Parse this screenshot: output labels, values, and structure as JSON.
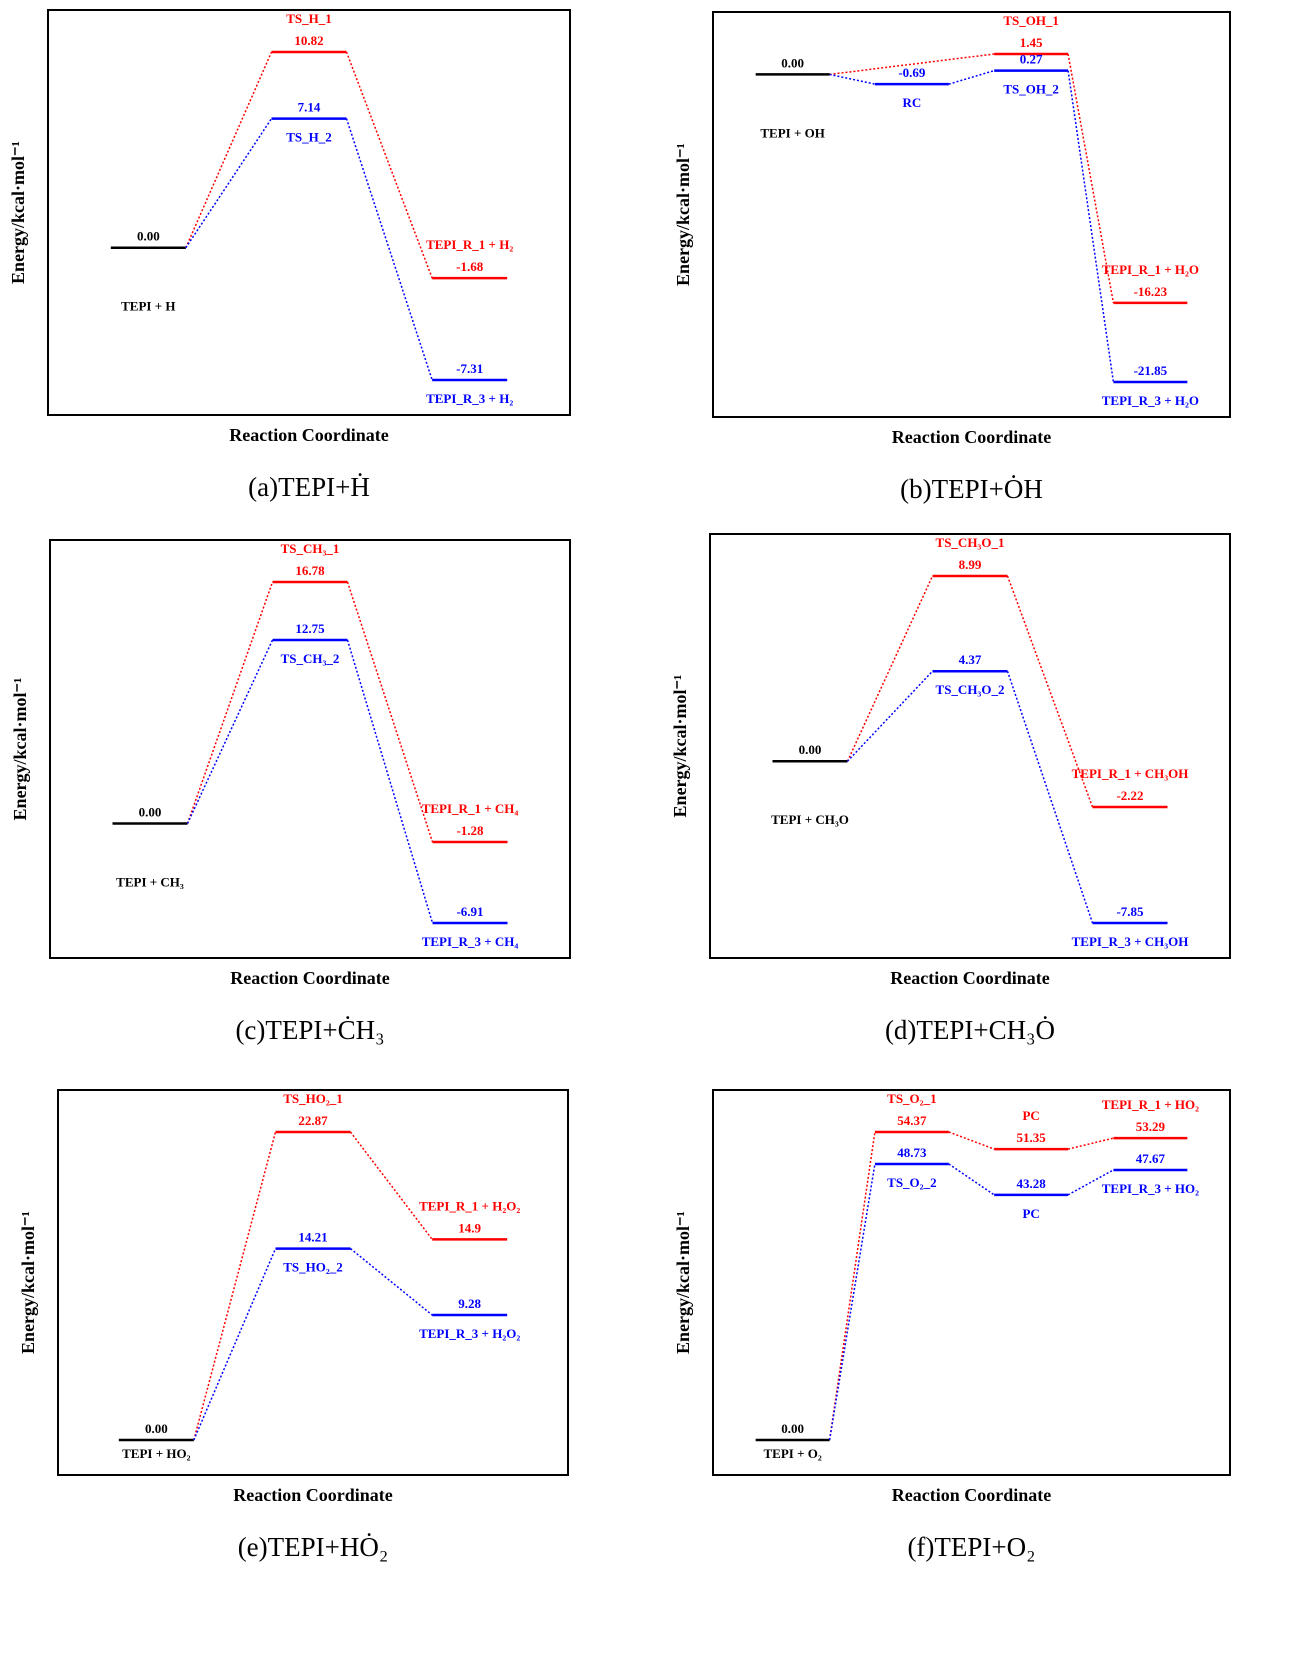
{
  "chart_data": [
    {
      "type": "energy-profile",
      "caption": "(a)TEPI+Ḣ",
      "xlabel": "Reaction Coordinate",
      "ylabel": "Energy/kcal·mol⁻¹",
      "reactant": {
        "value": 0,
        "value_label": "0.00",
        "label": "TEPI + H"
      },
      "series": [
        {
          "color": "#ff0000",
          "values": [
            10.82,
            -1.68
          ],
          "point_labels": [
            "TS_H_1",
            "TEPI_R_1 + H₂"
          ]
        },
        {
          "color": "#0000ff",
          "values": [
            7.14,
            -7.31
          ],
          "point_labels": [
            "TS_H_2",
            "TEPI_R_3 + H₂"
          ]
        }
      ]
    },
    {
      "type": "energy-profile",
      "caption": "(b)TEPI+ȮH",
      "xlabel": "Reaction Coordinate",
      "ylabel": "Energy/kcal·mol⁻¹",
      "reactant": {
        "value": 0,
        "value_label": "0.00",
        "label": "TEPI + OH"
      },
      "series": [
        {
          "color": "#ff0000",
          "values": [
            null,
            1.45,
            -16.23
          ],
          "point_labels": [
            null,
            "TS_OH_1",
            "TEPI_R_1 + H₂O"
          ]
        },
        {
          "color": "#0000ff",
          "values": [
            -0.69,
            0.27,
            -21.85
          ],
          "point_labels": [
            "RC",
            "TS_OH_2",
            "TEPI_R_3 + H₂O"
          ]
        }
      ]
    },
    {
      "type": "energy-profile",
      "caption": "(c)TEPI+ĊH₃",
      "xlabel": "Reaction Coordinate",
      "ylabel": "Energy/kcal·mol⁻¹",
      "reactant": {
        "value": 0,
        "value_label": "0.00",
        "label": "TEPI + CH₃"
      },
      "series": [
        {
          "color": "#ff0000",
          "values": [
            16.78,
            -1.28
          ],
          "point_labels": [
            "TS_CH₃_1",
            "TEPI_R_1 + CH₄"
          ]
        },
        {
          "color": "#0000ff",
          "values": [
            12.75,
            -6.91
          ],
          "point_labels": [
            "TS_CH₃_2",
            "TEPI_R_3 + CH₄"
          ]
        }
      ]
    },
    {
      "type": "energy-profile",
      "caption": "(d)TEPI+CH₃Ȯ",
      "xlabel": "Reaction Coordinate",
      "ylabel": "Energy/kcal·mol⁻¹",
      "reactant": {
        "value": 0,
        "value_label": "0.00",
        "label": "TEPI + CH₃O"
      },
      "series": [
        {
          "color": "#ff0000",
          "values": [
            8.99,
            -2.22
          ],
          "point_labels": [
            "TS_CH₃O_1",
            "TEPI_R_1 + CH₃OH"
          ]
        },
        {
          "color": "#0000ff",
          "values": [
            4.37,
            -7.85
          ],
          "point_labels": [
            "TS_CH₃O_2",
            "TEPI_R_3 + CH₃OH"
          ]
        }
      ]
    },
    {
      "type": "energy-profile",
      "caption": "(e)TEPI+HȮ₂",
      "xlabel": "Reaction Coordinate",
      "ylabel": "Energy/kcal·mol⁻¹",
      "reactant": {
        "value": 0,
        "value_label": "0.00",
        "label": "TEPI + HO₂"
      },
      "series": [
        {
          "color": "#ff0000",
          "values": [
            22.87,
            14.9
          ],
          "point_labels": [
            "TS_HO₂_1",
            "TEPI_R_1 + H₂O₂"
          ]
        },
        {
          "color": "#0000ff",
          "values": [
            14.21,
            9.28
          ],
          "point_labels": [
            "TS_HO₂_2",
            "TEPI_R_3 + H₂O₂"
          ]
        }
      ]
    },
    {
      "type": "energy-profile",
      "caption": "(f)TEPI+O₂",
      "xlabel": "Reaction Coordinate",
      "ylabel": "Energy/kcal·mol⁻¹",
      "reactant": {
        "value": 0,
        "value_label": "0.00",
        "label": "TEPI + O₂"
      },
      "series": [
        {
          "color": "#ff0000",
          "values": [
            54.37,
            51.35,
            53.29
          ],
          "point_labels": [
            "TS_O₂_1",
            "PC",
            "TEPI_R_1 + HO₂"
          ]
        },
        {
          "color": "#0000ff",
          "values": [
            48.73,
            43.28,
            47.67
          ],
          "point_labels": [
            "TS_O₂_2",
            "PC",
            "TEPI_R_3 + HO₂"
          ]
        }
      ]
    }
  ]
}
